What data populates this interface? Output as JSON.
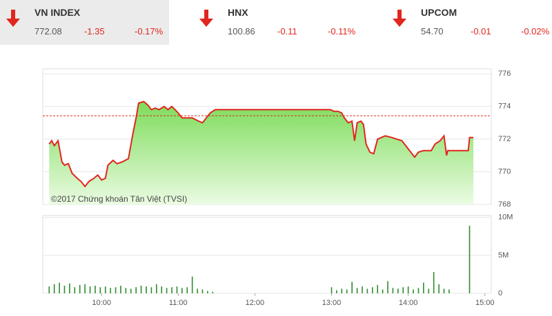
{
  "indices": [
    {
      "name": "VN INDEX",
      "value": "772.08",
      "change": "-1.35",
      "pct": "-0.17%"
    },
    {
      "name": "HNX",
      "value": "100.86",
      "change": "-0.11",
      "pct": "-0.11%"
    },
    {
      "name": "UPCOM",
      "value": "54.70",
      "change": "-0.01",
      "pct": "-0.02%"
    }
  ],
  "chart_data": [
    {
      "type": "area",
      "annotation": "©2017 Chứng khoán Tân Việt (TVSI)",
      "color": "#e0261e",
      "reference": 773.43,
      "xlim": [
        "09:14",
        "15:05"
      ],
      "ylim": [
        768,
        776.3
      ],
      "yticks": [
        768,
        770,
        772,
        774,
        776
      ],
      "grid": true,
      "x": [
        "09:19",
        "09:21",
        "09:23",
        "09:26",
        "09:29",
        "09:31",
        "09:34",
        "09:37",
        "09:41",
        "09:44",
        "09:47",
        "09:50",
        "09:54",
        "09:57",
        "10:00",
        "10:03",
        "10:05",
        "10:09",
        "10:12",
        "10:16",
        "10:21",
        "10:24",
        "10:27",
        "10:29",
        "10:33",
        "10:36",
        "10:39",
        "10:42",
        "10:45",
        "10:49",
        "10:52",
        "10:55",
        "11:00",
        "11:03",
        "11:07",
        "11:11",
        "11:16",
        "11:19",
        "11:22",
        "11:25",
        "11:29",
        "11:33",
        "12:59",
        "13:02",
        "13:05",
        "13:08",
        "13:10",
        "13:13",
        "13:16",
        "13:18",
        "13:20",
        "13:23",
        "13:25",
        "13:27",
        "13:30",
        "13:33",
        "13:36",
        "13:39",
        "13:42",
        "13:47",
        "13:51",
        "13:55",
        "13:59",
        "14:02",
        "14:05",
        "14:08",
        "14:12",
        "14:15",
        "14:18",
        "14:21",
        "14:25",
        "14:28",
        "14:30",
        "14:31",
        "14:40",
        "14:47",
        "14:48",
        "14:51"
      ],
      "values": [
        771.7,
        771.9,
        771.6,
        771.9,
        770.6,
        770.4,
        770.5,
        769.9,
        769.6,
        769.4,
        769.1,
        769.4,
        769.6,
        769.8,
        769.5,
        769.6,
        770.4,
        770.7,
        770.5,
        770.6,
        770.8,
        772.1,
        773.3,
        774.2,
        774.3,
        774.1,
        773.8,
        773.9,
        773.8,
        774.0,
        773.8,
        774.0,
        773.6,
        773.3,
        773.3,
        773.3,
        773.1,
        773.0,
        773.3,
        773.6,
        773.8,
        773.8,
        773.8,
        773.7,
        773.7,
        773.6,
        773.3,
        773.0,
        773.1,
        771.9,
        773.0,
        773.1,
        772.9,
        771.7,
        771.2,
        771.1,
        772.0,
        772.1,
        772.2,
        772.1,
        772.0,
        771.9,
        771.5,
        771.2,
        770.9,
        771.2,
        771.3,
        771.3,
        771.3,
        771.7,
        771.9,
        772.2,
        771.0,
        771.3,
        771.3,
        771.3,
        772.1,
        772.1
      ]
    },
    {
      "type": "bar",
      "color": "#2e8b2e",
      "xlim": [
        "09:14",
        "15:05"
      ],
      "ylim": [
        0,
        10.25
      ],
      "yticks": [
        {
          "value": 0,
          "label": "0"
        },
        {
          "value": 5,
          "label": "5M"
        },
        {
          "value": 10,
          "label": "10M"
        }
      ],
      "xticks": [
        "10:00",
        "11:00",
        "12:00",
        "13:00",
        "14:00",
        "15:00"
      ],
      "grid": true,
      "x": [
        "09:19",
        "09:23",
        "09:27",
        "09:31",
        "09:35",
        "09:39",
        "09:43",
        "09:47",
        "09:51",
        "09:55",
        "09:59",
        "10:03",
        "10:07",
        "10:11",
        "10:15",
        "10:19",
        "10:23",
        "10:27",
        "10:31",
        "10:35",
        "10:39",
        "10:43",
        "10:47",
        "10:51",
        "10:55",
        "10:59",
        "11:03",
        "11:07",
        "11:11",
        "11:15",
        "11:19",
        "11:23",
        "11:27",
        "13:00",
        "13:04",
        "13:08",
        "13:12",
        "13:16",
        "13:20",
        "13:24",
        "13:28",
        "13:32",
        "13:36",
        "13:40",
        "13:44",
        "13:48",
        "13:52",
        "13:56",
        "14:00",
        "14:04",
        "14:08",
        "14:12",
        "14:16",
        "14:20",
        "14:24",
        "14:28",
        "14:32",
        "14:48"
      ],
      "values": [
        0.9,
        1.2,
        1.4,
        1.0,
        1.3,
        0.8,
        1.1,
        1.2,
        0.9,
        1.0,
        0.8,
        0.9,
        0.7,
        0.8,
        1.0,
        0.7,
        0.6,
        0.8,
        1.0,
        0.9,
        0.8,
        1.2,
        0.9,
        0.7,
        0.8,
        0.9,
        0.7,
        0.8,
        2.2,
        0.6,
        0.5,
        0.3,
        0.2,
        0.8,
        0.4,
        0.6,
        0.5,
        1.5,
        0.7,
        0.9,
        0.6,
        0.8,
        1.1,
        0.5,
        1.6,
        0.7,
        0.6,
        0.8,
        0.9,
        0.5,
        0.7,
        1.4,
        0.6,
        2.8,
        1.2,
        0.6,
        0.5,
        8.9
      ]
    }
  ]
}
